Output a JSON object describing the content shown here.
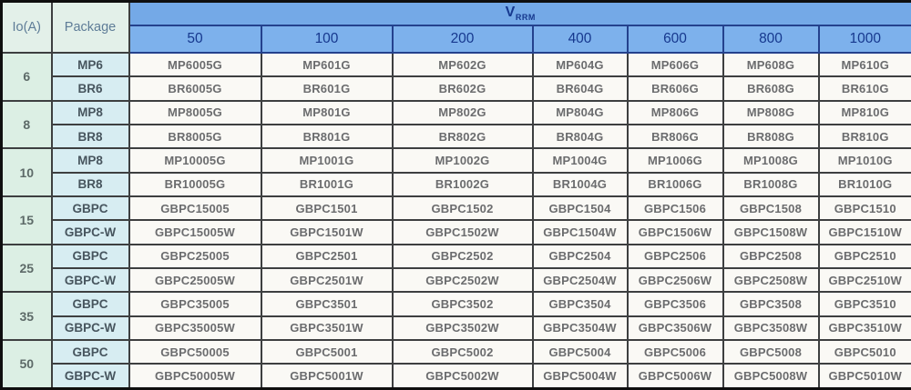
{
  "table": {
    "corner_headers": {
      "io": "Io(A)",
      "package": "Package"
    },
    "vrrm_header": {
      "main": "V",
      "sub": "RRM"
    },
    "voltage_columns": [
      "50",
      "100",
      "200",
      "400",
      "600",
      "800",
      "1000"
    ],
    "groups": [
      {
        "io": "6",
        "rows": [
          {
            "package": "MP6",
            "parts": [
              "MP6005G",
              "MP601G",
              "MP602G",
              "MP604G",
              "MP606G",
              "MP608G",
              "MP610G"
            ]
          },
          {
            "package": "BR6",
            "parts": [
              "BR6005G",
              "BR601G",
              "BR602G",
              "BR604G",
              "BR606G",
              "BR608G",
              "BR610G"
            ]
          }
        ]
      },
      {
        "io": "8",
        "rows": [
          {
            "package": "MP8",
            "parts": [
              "MP8005G",
              "MP801G",
              "MP802G",
              "MP804G",
              "MP806G",
              "MP808G",
              "MP810G"
            ]
          },
          {
            "package": "BR8",
            "parts": [
              "BR8005G",
              "BR801G",
              "BR802G",
              "BR804G",
              "BR806G",
              "BR808G",
              "BR810G"
            ]
          }
        ]
      },
      {
        "io": "10",
        "rows": [
          {
            "package": "MP8",
            "parts": [
              "MP10005G",
              "MP1001G",
              "MP1002G",
              "MP1004G",
              "MP1006G",
              "MP1008G",
              "MP1010G"
            ]
          },
          {
            "package": "BR8",
            "parts": [
              "BR10005G",
              "BR1001G",
              "BR1002G",
              "BR1004G",
              "BR1006G",
              "BR1008G",
              "BR1010G"
            ]
          }
        ]
      },
      {
        "io": "15",
        "rows": [
          {
            "package": "GBPC",
            "parts": [
              "GBPC15005",
              "GBPC1501",
              "GBPC1502",
              "GBPC1504",
              "GBPC1506",
              "GBPC1508",
              "GBPC1510"
            ]
          },
          {
            "package": "GBPC-W",
            "parts": [
              "GBPC15005W",
              "GBPC1501W",
              "GBPC1502W",
              "GBPC1504W",
              "GBPC1506W",
              "GBPC1508W",
              "GBPC1510W"
            ]
          }
        ]
      },
      {
        "io": "25",
        "rows": [
          {
            "package": "GBPC",
            "parts": [
              "GBPC25005",
              "GBPC2501",
              "GBPC2502",
              "GBPC2504",
              "GBPC2506",
              "GBPC2508",
              "GBPC2510"
            ]
          },
          {
            "package": "GBPC-W",
            "parts": [
              "GBPC25005W",
              "GBPC2501W",
              "GBPC2502W",
              "GBPC2504W",
              "GBPC2506W",
              "GBPC2508W",
              "GBPC2510W"
            ]
          }
        ]
      },
      {
        "io": "35",
        "rows": [
          {
            "package": "GBPC",
            "parts": [
              "GBPC35005",
              "GBPC3501",
              "GBPC3502",
              "GBPC3504",
              "GBPC3506",
              "GBPC3508",
              "GBPC3510"
            ]
          },
          {
            "package": "GBPC-W",
            "parts": [
              "GBPC35005W",
              "GBPC3501W",
              "GBPC3502W",
              "GBPC3504W",
              "GBPC3506W",
              "GBPC3508W",
              "GBPC3510W"
            ]
          }
        ]
      },
      {
        "io": "50",
        "rows": [
          {
            "package": "GBPC",
            "parts": [
              "GBPC50005",
              "GBPC5001",
              "GBPC5002",
              "GBPC5004",
              "GBPC5006",
              "GBPC5008",
              "GBPC5010"
            ]
          },
          {
            "package": "GBPC-W",
            "parts": [
              "GBPC50005W",
              "GBPC5001W",
              "GBPC5002W",
              "GBPC5004W",
              "GBPC5006W",
              "GBPC5008W",
              "GBPC5010W"
            ]
          }
        ]
      }
    ]
  },
  "colors": {
    "header_blue_top": "#74a9e7",
    "header_blue_bottom": "#7db1ec",
    "header_navy_text": "#16388e",
    "io_column_green": "#dcefe4",
    "package_column_cyan": "#d7edf2",
    "corner_header_mint": "#e3f0e9",
    "cell_white": "#faf9f5",
    "grid_line": "#3d3f40"
  }
}
